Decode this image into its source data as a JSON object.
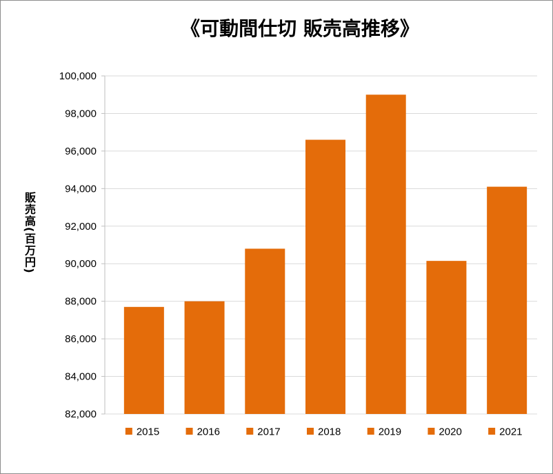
{
  "chart_data": {
    "type": "bar",
    "title": "《可動間仕切 販売高推移》",
    "xlabel": "",
    "ylabel": "販売高(百万円)",
    "ylim": [
      82000,
      100000
    ],
    "ytick_labels": [
      "82,000",
      "84,000",
      "86,000",
      "88,000",
      "90,000",
      "92,000",
      "94,000",
      "96,000",
      "98,000",
      "100,000"
    ],
    "categories": [
      "2015",
      "2016",
      "2017",
      "2018",
      "2019",
      "2020",
      "2021"
    ],
    "values": [
      87700,
      88000,
      90800,
      96600,
      99000,
      90150,
      94100
    ],
    "grid": true,
    "legend": "bottom",
    "color": "#E46C0A",
    "grid_color": "#D9D9D9",
    "axis_color": "#BFBFBF",
    "border_color": "#8C8C8C"
  }
}
